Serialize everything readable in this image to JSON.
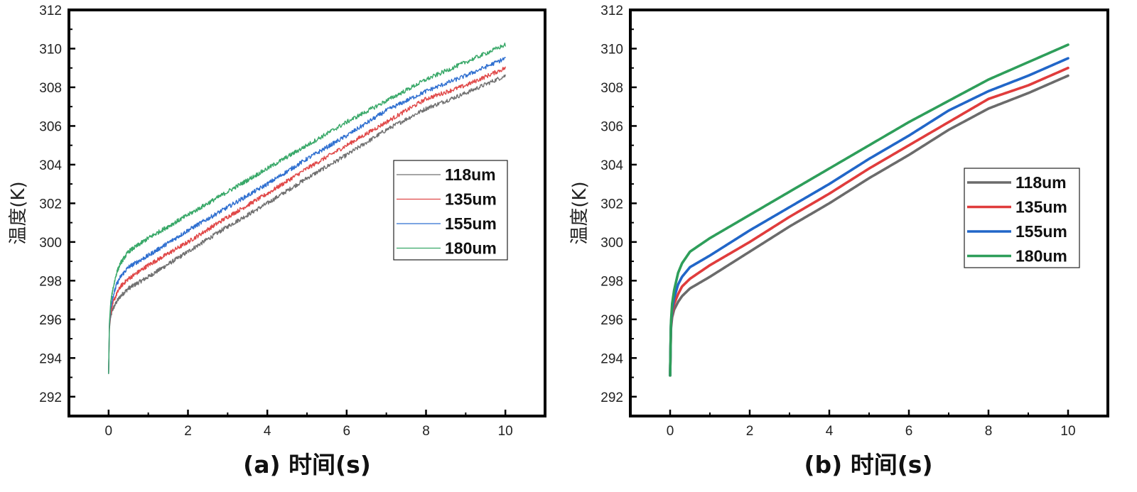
{
  "chart_data": [
    {
      "id": "a",
      "type": "line",
      "style": "noisy",
      "caption": "(a)  时间(s)",
      "ylabel": "温度(K)",
      "xlabel": "时间(s)",
      "xlim": [
        -1,
        11
      ],
      "ylim": [
        291,
        312
      ],
      "xticks": [
        "0",
        "2",
        "4",
        "6",
        "8",
        "10"
      ],
      "yticks": [
        "292",
        "294",
        "296",
        "298",
        "300",
        "302",
        "304",
        "306",
        "308",
        "310",
        "312"
      ],
      "legend_position": "right-center",
      "series": [
        {
          "name": "118um",
          "color": "#707070",
          "x": [
            0,
            0.02,
            0.05,
            0.1,
            0.2,
            0.3,
            0.5,
            1,
            2,
            3,
            4,
            5,
            6,
            7,
            8,
            9,
            10
          ],
          "y": [
            293.2,
            295.5,
            296.1,
            296.5,
            296.9,
            297.2,
            297.6,
            298.2,
            299.5,
            300.8,
            302.0,
            303.3,
            304.5,
            305.8,
            306.9,
            307.7,
            308.6
          ]
        },
        {
          "name": "135um",
          "color": "#e04848",
          "x": [
            0,
            0.02,
            0.05,
            0.1,
            0.2,
            0.3,
            0.5,
            1,
            2,
            3,
            4,
            5,
            6,
            7,
            8,
            9,
            10
          ],
          "y": [
            293.2,
            295.6,
            296.3,
            296.8,
            297.3,
            297.7,
            298.1,
            298.8,
            300.0,
            301.3,
            302.5,
            303.8,
            305.0,
            306.2,
            307.4,
            308.1,
            309.0
          ]
        },
        {
          "name": "155um",
          "color": "#2f6fd0",
          "x": [
            0,
            0.02,
            0.05,
            0.1,
            0.2,
            0.3,
            0.5,
            1,
            2,
            3,
            4,
            5,
            6,
            7,
            8,
            9,
            10
          ],
          "y": [
            293.2,
            295.7,
            296.5,
            297.1,
            297.8,
            298.2,
            298.7,
            299.3,
            300.6,
            301.8,
            303.0,
            304.3,
            305.5,
            306.8,
            307.8,
            308.6,
            309.5
          ]
        },
        {
          "name": "180um",
          "color": "#38a868",
          "x": [
            0,
            0.02,
            0.05,
            0.1,
            0.2,
            0.3,
            0.5,
            1,
            2,
            3,
            4,
            5,
            6,
            7,
            8,
            9,
            10
          ],
          "y": [
            293.2,
            295.8,
            296.8,
            297.5,
            298.4,
            298.9,
            299.5,
            300.2,
            301.4,
            302.6,
            303.8,
            305.0,
            306.2,
            307.3,
            308.4,
            309.3,
            310.2
          ]
        }
      ]
    },
    {
      "id": "b",
      "type": "line",
      "style": "smooth",
      "caption": "(b)  时间(s)",
      "ylabel": "温度(K)",
      "xlabel": "时间(s)",
      "xlim": [
        -1,
        11
      ],
      "ylim": [
        291,
        312
      ],
      "xticks": [
        "0",
        "2",
        "4",
        "6",
        "8",
        "10"
      ],
      "yticks": [
        "292",
        "294",
        "296",
        "298",
        "300",
        "302",
        "304",
        "306",
        "308",
        "310",
        "312"
      ],
      "legend_position": "right-center",
      "series": [
        {
          "name": "118um",
          "color": "#6b6b6b",
          "x": [
            0,
            0.02,
            0.05,
            0.1,
            0.2,
            0.3,
            0.5,
            1,
            2,
            3,
            4,
            5,
            6,
            7,
            8,
            9,
            10
          ],
          "y": [
            293.1,
            295.5,
            296.1,
            296.5,
            296.9,
            297.2,
            297.6,
            298.2,
            299.5,
            300.8,
            302.0,
            303.3,
            304.5,
            305.8,
            306.9,
            307.7,
            308.6
          ]
        },
        {
          "name": "135um",
          "color": "#e03c3c",
          "x": [
            0,
            0.02,
            0.05,
            0.1,
            0.2,
            0.3,
            0.5,
            1,
            2,
            3,
            4,
            5,
            6,
            7,
            8,
            9,
            10
          ],
          "y": [
            293.1,
            295.6,
            296.3,
            296.8,
            297.3,
            297.7,
            298.1,
            298.8,
            300.0,
            301.3,
            302.5,
            303.8,
            305.0,
            306.2,
            307.4,
            308.1,
            309.0
          ]
        },
        {
          "name": "155um",
          "color": "#2166c8",
          "x": [
            0,
            0.02,
            0.05,
            0.1,
            0.2,
            0.3,
            0.5,
            1,
            2,
            3,
            4,
            5,
            6,
            7,
            8,
            9,
            10
          ],
          "y": [
            293.1,
            295.7,
            296.5,
            297.1,
            297.8,
            298.2,
            298.7,
            299.3,
            300.6,
            301.8,
            303.0,
            304.3,
            305.5,
            306.8,
            307.8,
            308.6,
            309.5
          ]
        },
        {
          "name": "180um",
          "color": "#2e9e5a",
          "x": [
            0,
            0.02,
            0.05,
            0.1,
            0.2,
            0.3,
            0.5,
            1,
            2,
            3,
            4,
            5,
            6,
            7,
            8,
            9,
            10
          ],
          "y": [
            293.1,
            295.8,
            296.8,
            297.5,
            298.4,
            298.9,
            299.5,
            300.2,
            301.4,
            302.6,
            303.8,
            305.0,
            306.2,
            307.3,
            308.4,
            309.3,
            310.2
          ]
        }
      ]
    }
  ]
}
